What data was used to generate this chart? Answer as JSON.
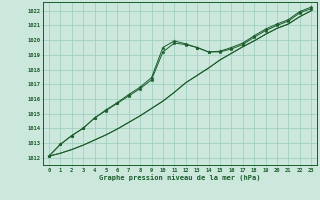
{
  "title": "Graphe pression niveau de la mer (hPa)",
  "bg_color": "#cce8dd",
  "grid_color": "#99ccbb",
  "line_color": "#1a5c2a",
  "x_values": [
    0,
    1,
    2,
    3,
    4,
    5,
    6,
    7,
    8,
    9,
    10,
    11,
    12,
    13,
    14,
    15,
    16,
    17,
    18,
    19,
    20,
    21,
    22,
    23
  ],
  "s1": [
    1012.1,
    1012.9,
    1013.5,
    1014.0,
    1014.7,
    1015.2,
    1015.7,
    1016.2,
    1016.7,
    1017.3,
    1019.2,
    1019.8,
    1019.7,
    1019.5,
    1019.2,
    1019.2,
    1019.4,
    1019.7,
    1020.2,
    1020.65,
    1021.0,
    1021.3,
    1021.85,
    1022.15
  ],
  "s2": [
    1012.1,
    1012.9,
    1013.5,
    1014.0,
    1014.7,
    1015.25,
    1015.75,
    1016.3,
    1016.8,
    1017.45,
    1019.5,
    1019.95,
    1019.75,
    1019.5,
    1019.2,
    1019.25,
    1019.5,
    1019.8,
    1020.3,
    1020.75,
    1021.1,
    1021.4,
    1021.95,
    1022.25
  ],
  "s3": [
    1012.1,
    1012.3,
    1012.55,
    1012.85,
    1013.2,
    1013.55,
    1013.95,
    1014.4,
    1014.85,
    1015.35,
    1015.85,
    1016.45,
    1017.1,
    1017.6,
    1018.1,
    1018.65,
    1019.1,
    1019.55,
    1019.95,
    1020.4,
    1020.8,
    1021.1,
    1021.6,
    1022.0
  ],
  "s4": [
    1012.1,
    1012.3,
    1012.55,
    1012.85,
    1013.2,
    1013.55,
    1013.95,
    1014.4,
    1014.85,
    1015.35,
    1015.85,
    1016.45,
    1017.1,
    1017.6,
    1018.1,
    1018.65,
    1019.1,
    1019.55,
    1019.95,
    1020.4,
    1020.8,
    1021.1,
    1021.6,
    1022.0
  ],
  "ylim": [
    1011.5,
    1022.6
  ],
  "yticks": [
    1012,
    1013,
    1014,
    1015,
    1016,
    1017,
    1018,
    1019,
    1020,
    1021,
    1022
  ],
  "xlim": [
    -0.5,
    23.5
  ],
  "xticks": [
    0,
    1,
    2,
    3,
    4,
    5,
    6,
    7,
    8,
    9,
    10,
    11,
    12,
    13,
    14,
    15,
    16,
    17,
    18,
    19,
    20,
    21,
    22,
    23
  ]
}
